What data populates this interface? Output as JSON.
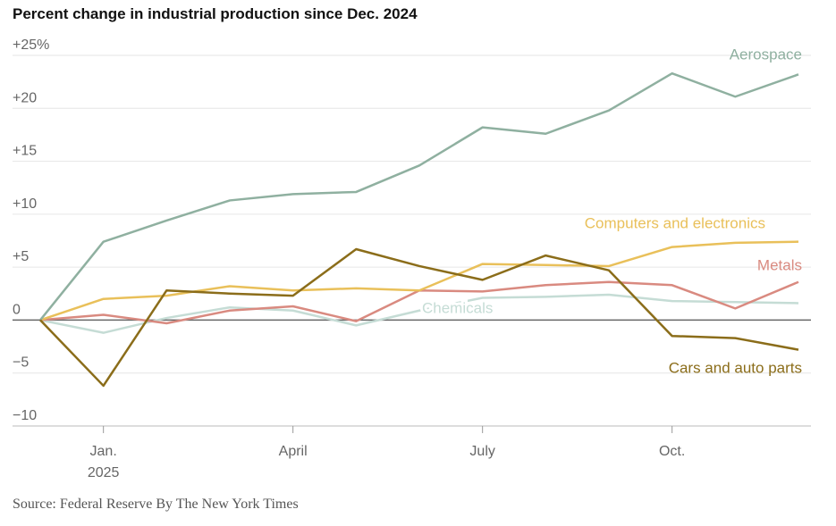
{
  "chart_data": {
    "type": "line",
    "title": "Percent change in industrial production since Dec. 2024",
    "source": "Source: Federal Reserve  By The New York Times",
    "categories": [
      null,
      "Jan.\n2025",
      null,
      null,
      "April",
      null,
      null,
      "July",
      null,
      null,
      "Oct.",
      null,
      null
    ],
    "ylim": [
      -10,
      25
    ],
    "yticks": [
      {
        "value": -10,
        "label": "−10"
      },
      {
        "value": -5,
        "label": "−5"
      },
      0,
      {
        "value": 5,
        "label": "+5"
      },
      {
        "value": 10,
        "label": "+10"
      },
      {
        "value": 15,
        "label": "+15"
      },
      {
        "value": 20,
        "label": "+20"
      },
      {
        "value": 25,
        "label": "+25%"
      }
    ],
    "grid": true,
    "series": [
      {
        "name": "Chemicals",
        "color": "#c5dcd5",
        "values": [
          0,
          -1.2,
          0.2,
          1.2,
          0.9,
          -0.5,
          0.9,
          2.1,
          2.2,
          2.4,
          1.8,
          1.7,
          1.6
        ]
      },
      {
        "name": "Metals",
        "color": "#d98a80",
        "values": [
          0,
          0.5,
          -0.3,
          0.9,
          1.3,
          -0.1,
          2.8,
          2.7,
          3.3,
          3.6,
          3.3,
          1.1,
          3.6
        ]
      },
      {
        "name": "Computers and electronics",
        "color": "#e9c05a",
        "values": [
          0,
          2.0,
          2.3,
          3.2,
          2.8,
          3.0,
          2.8,
          5.3,
          5.2,
          5.1,
          6.9,
          7.3,
          7.4
        ]
      },
      {
        "name": "Aerospace",
        "color": "#8fb0a0",
        "values": [
          0,
          7.4,
          9.4,
          11.3,
          11.9,
          12.1,
          14.6,
          18.2,
          17.6,
          19.8,
          23.3,
          21.1,
          23.2
        ]
      },
      {
        "name": "Cars and auto parts",
        "color": "#8b6d1a",
        "values": [
          0,
          -6.2,
          2.8,
          2.5,
          2.3,
          6.7,
          5.1,
          3.8,
          6.1,
          4.7,
          -1.5,
          -1.7,
          -2.8
        ]
      }
    ]
  }
}
